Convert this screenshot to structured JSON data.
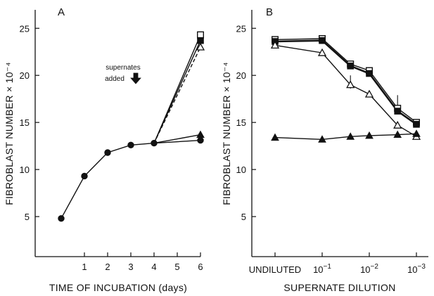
{
  "chart_data": [
    {
      "panel": "A",
      "type": "line",
      "xlabel": "TIME OF INCUBATION (days)",
      "ylabel": "FIBROBLAST NUMBER × 10⁻⁴",
      "ylim": [
        0,
        27
      ],
      "xlim": [
        0,
        6.4
      ],
      "xticks": [
        "1",
        "2",
        "3",
        "4",
        "5",
        "6"
      ],
      "yticks": [
        "5",
        "10",
        "15",
        "20",
        "25"
      ],
      "annotation": {
        "line1": "supernates",
        "line2": "added"
      },
      "series": [
        {
          "marker": "filled-circle",
          "dashed": false,
          "points": [
            [
              0,
              4.8
            ],
            [
              1,
              9.3
            ],
            [
              2,
              11.8
            ],
            [
              3,
              12.6
            ],
            [
              4,
              12.8
            ],
            [
              6,
              13.1
            ]
          ]
        },
        {
          "marker": "filled-triangle",
          "dashed": false,
          "points": [
            [
              4,
              12.8
            ],
            [
              6,
              13.7
            ]
          ]
        },
        {
          "marker": "open-square",
          "dashed": false,
          "points": [
            [
              4,
              12.8
            ],
            [
              6,
              24.3
            ]
          ]
        },
        {
          "marker": "filled-square",
          "dashed": false,
          "points": [
            [
              4,
              12.8
            ],
            [
              6,
              23.7
            ]
          ]
        },
        {
          "marker": "open-triangle",
          "dashed": true,
          "points": [
            [
              4,
              12.8
            ],
            [
              6,
              23.0
            ]
          ]
        }
      ]
    },
    {
      "panel": "B",
      "type": "line",
      "xlabel": "SUPERNATE DILUTION",
      "ylabel": "FIBROBLAST NUMBER × 10⁻⁴",
      "ylim": [
        0,
        27
      ],
      "xlim": [
        0,
        3
      ],
      "xticks": [
        {
          "pos": 0,
          "label": "UNDILUTED",
          "sup": ""
        },
        {
          "pos": 1,
          "label": "10",
          "sup": "−1"
        },
        {
          "pos": 2,
          "label": "10",
          "sup": "−2"
        },
        {
          "pos": 3,
          "label": "10",
          "sup": "−3"
        }
      ],
      "yticks": [
        "5",
        "10",
        "15",
        "20",
        "25"
      ],
      "series": [
        {
          "marker": "open-square",
          "points": [
            [
              0,
              23.8
            ],
            [
              1,
              23.9
            ],
            [
              1.6,
              21.2
            ],
            [
              2,
              20.5
            ],
            [
              2.6,
              16.5
            ],
            [
              3,
              15.0
            ]
          ]
        },
        {
          "marker": "filled-square",
          "points": [
            [
              0,
              23.6
            ],
            [
              1,
              23.7
            ],
            [
              1.6,
              21.0
            ],
            [
              2,
              20.2
            ],
            [
              2.6,
              16.2
            ],
            [
              3,
              14.8
            ]
          ]
        },
        {
          "marker": "open-triangle",
          "points": [
            [
              0,
              23.2
            ],
            [
              1,
              22.4
            ],
            [
              1.6,
              19.0
            ],
            [
              2,
              18.0
            ],
            [
              2.6,
              14.7
            ],
            [
              3,
              13.5
            ]
          ]
        },
        {
          "marker": "filled-triangle",
          "points": [
            [
              0,
              13.4
            ],
            [
              1,
              13.2
            ],
            [
              1.6,
              13.5
            ],
            [
              2,
              13.6
            ],
            [
              2.6,
              13.7
            ],
            [
              3,
              13.8
            ]
          ]
        }
      ]
    }
  ]
}
